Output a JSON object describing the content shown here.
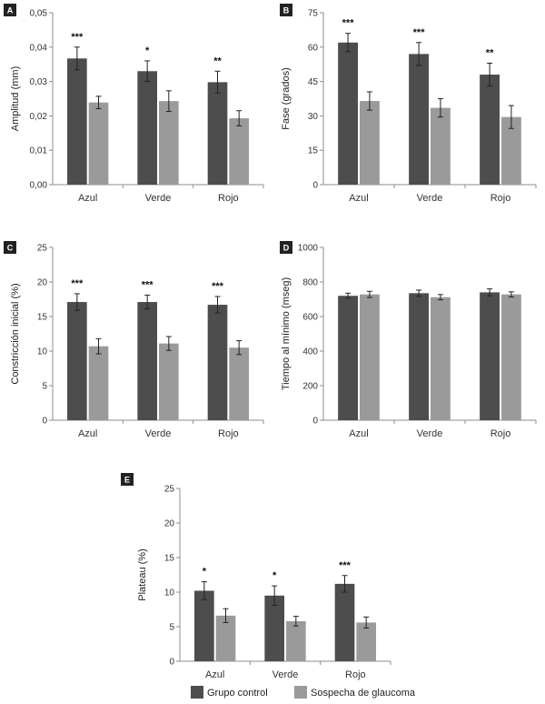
{
  "colors": {
    "control": "#4d4d4d",
    "glaucoma": "#9a9a9a",
    "axis": "#8c8c8c",
    "error": "#222222"
  },
  "legend": {
    "control_label": "Grupo control",
    "glaucoma_label": "Sospecha de glaucoma"
  },
  "chart_data": [
    {
      "panel": "A",
      "type": "bar",
      "ylabel": "Amplitud (mm)",
      "categories": [
        "Azul",
        "Verde",
        "Rojo"
      ],
      "ylim": [
        0,
        0.05
      ],
      "yticks": [
        "0,00",
        "0,01",
        "0,02",
        "0,03",
        "0,04",
        "0,05"
      ],
      "series": [
        {
          "name": "Grupo control",
          "values": [
            0.0367,
            0.033,
            0.0298
          ],
          "errors": [
            0.0033,
            0.003,
            0.0032
          ]
        },
        {
          "name": "Sospecha de glaucoma",
          "values": [
            0.0239,
            0.0243,
            0.0193
          ],
          "errors": [
            0.0018,
            0.003,
            0.0022
          ]
        }
      ],
      "significance": [
        "***",
        "*",
        "**"
      ]
    },
    {
      "panel": "B",
      "type": "bar",
      "ylabel": "Fase (grados)",
      "categories": [
        "Azul",
        "Verde",
        "Rojo"
      ],
      "ylim": [
        0,
        75
      ],
      "yticks": [
        "0",
        "15",
        "30",
        "45",
        "60",
        "75"
      ],
      "series": [
        {
          "name": "Grupo control",
          "values": [
            62,
            57,
            48
          ],
          "errors": [
            4,
            5,
            5
          ]
        },
        {
          "name": "Sospecha de glaucoma",
          "values": [
            36.5,
            33.5,
            29.5
          ],
          "errors": [
            4,
            4,
            5
          ]
        }
      ],
      "significance": [
        "***",
        "***",
        "**"
      ]
    },
    {
      "panel": "C",
      "type": "bar",
      "ylabel": "Constricción inicial (%)",
      "categories": [
        "Azul",
        "Verde",
        "Rojo"
      ],
      "ylim": [
        0,
        25
      ],
      "yticks": [
        "0",
        "5",
        "10",
        "15",
        "20",
        "25"
      ],
      "series": [
        {
          "name": "Grupo control",
          "values": [
            17.1,
            17.1,
            16.7
          ],
          "errors": [
            1.2,
            1.0,
            1.2
          ]
        },
        {
          "name": "Sospecha de glaucoma",
          "values": [
            10.7,
            11.1,
            10.5
          ],
          "errors": [
            1.1,
            1.0,
            1.0
          ]
        }
      ],
      "significance": [
        "***",
        "***",
        "***"
      ]
    },
    {
      "panel": "D",
      "type": "bar",
      "ylabel": "Tiempo al mínimo (mseg)",
      "categories": [
        "Azul",
        "Verde",
        "Rojo"
      ],
      "ylim": [
        0,
        1000
      ],
      "yticks": [
        "0",
        "200",
        "400",
        "600",
        "800",
        "1000"
      ],
      "series": [
        {
          "name": "Grupo control",
          "values": [
            720,
            735,
            740
          ],
          "errors": [
            15,
            18,
            20
          ]
        },
        {
          "name": "Sospecha de glaucoma",
          "values": [
            728,
            712,
            728
          ],
          "errors": [
            18,
            15,
            15
          ]
        }
      ],
      "significance": [
        "",
        "",
        ""
      ]
    },
    {
      "panel": "E",
      "type": "bar",
      "ylabel": "Plateau (%)",
      "categories": [
        "Azul",
        "Verde",
        "Rojo"
      ],
      "ylim": [
        0,
        25
      ],
      "yticks": [
        "0",
        "5",
        "10",
        "15",
        "20",
        "25"
      ],
      "series": [
        {
          "name": "Grupo control",
          "values": [
            10.2,
            9.5,
            11.2
          ],
          "errors": [
            1.3,
            1.4,
            1.2
          ]
        },
        {
          "name": "Sospecha de glaucoma",
          "values": [
            6.6,
            5.8,
            5.6
          ],
          "errors": [
            1.0,
            0.7,
            0.8
          ]
        }
      ],
      "significance": [
        "*",
        "*",
        "***"
      ]
    }
  ]
}
